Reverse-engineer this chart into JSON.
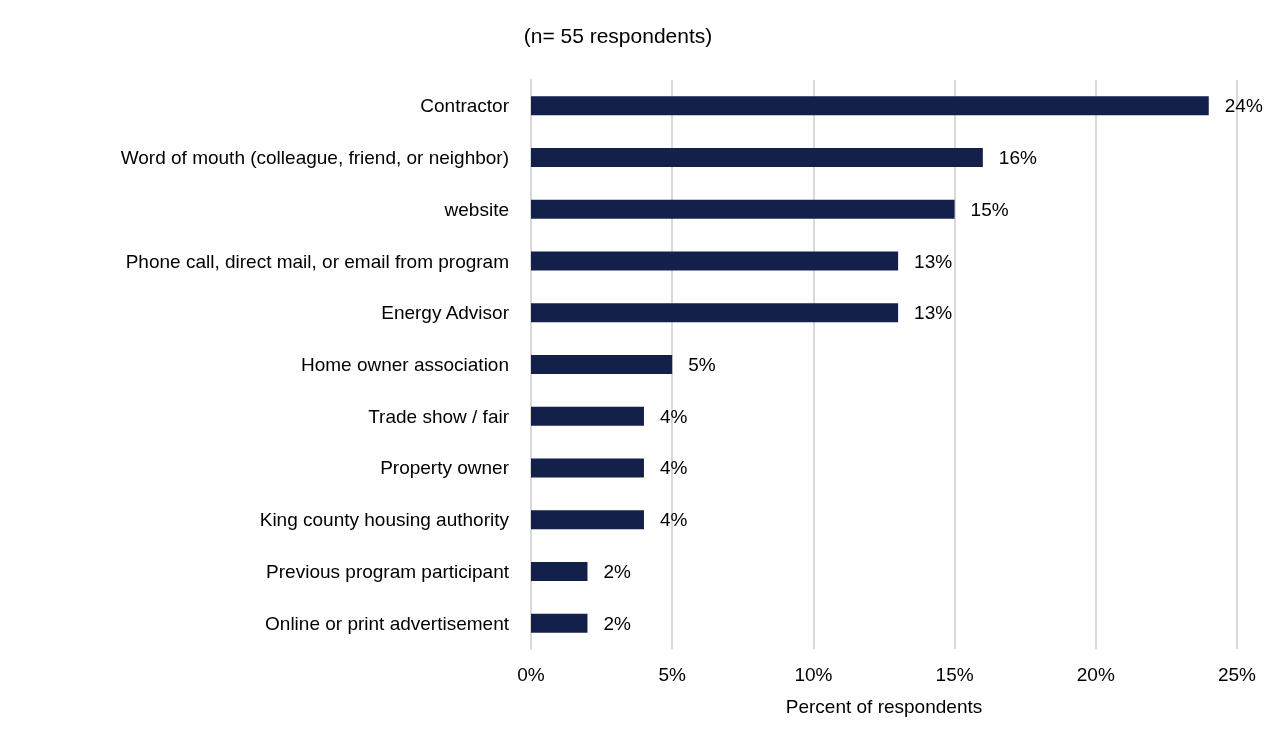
{
  "chart_data": {
    "type": "bar",
    "orientation": "horizontal",
    "title": "(n= 55 respondents)",
    "xlabel": "Percent of respondents",
    "categories": [
      "Contractor",
      "Word of mouth (colleague, friend, or neighbor)",
      "website",
      "Phone call, direct mail, or email from program",
      "Energy Advisor",
      "Home owner association",
      "Trade show / fair",
      "Property owner",
      "King county housing authority",
      "Previous program participant",
      "Online or print advertisement"
    ],
    "values": [
      24,
      16,
      15,
      13,
      13,
      5,
      4,
      4,
      4,
      2,
      2
    ],
    "value_labels": [
      "24%",
      "16%",
      "15%",
      "13%",
      "13%",
      "5%",
      "4%",
      "4%",
      "4%",
      "2%",
      "2%"
    ],
    "color": "#13214a",
    "xlim": [
      0,
      25
    ],
    "xticks": [
      {
        "value": 0,
        "label": "0%"
      },
      {
        "value": 5,
        "label": "5%"
      },
      {
        "value": 10,
        "label": "10%"
      },
      {
        "value": 15,
        "label": "15%"
      },
      {
        "value": 20,
        "label": "20%"
      },
      {
        "value": 25,
        "label": "25%"
      }
    ],
    "grid": "x"
  }
}
